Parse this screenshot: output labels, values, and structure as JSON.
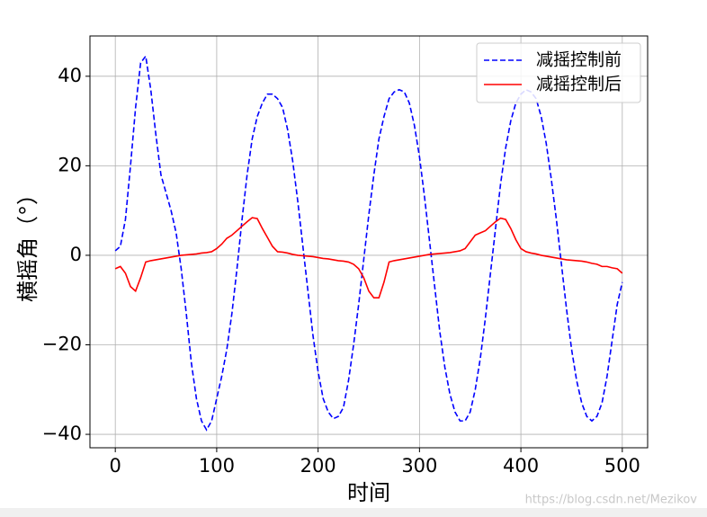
{
  "chart_data": {
    "type": "line",
    "xlabel": "时间",
    "ylabel": "横摇角（°）",
    "x": [
      0,
      5,
      10,
      15,
      20,
      25,
      30,
      35,
      40,
      45,
      50,
      55,
      60,
      65,
      70,
      75,
      80,
      85,
      90,
      95,
      100,
      105,
      110,
      115,
      120,
      125,
      130,
      135,
      140,
      145,
      150,
      155,
      160,
      165,
      170,
      175,
      180,
      185,
      190,
      195,
      200,
      205,
      210,
      215,
      220,
      225,
      230,
      235,
      240,
      245,
      250,
      255,
      260,
      265,
      270,
      275,
      280,
      285,
      290,
      295,
      300,
      305,
      310,
      315,
      320,
      325,
      330,
      335,
      340,
      345,
      350,
      355,
      360,
      365,
      370,
      375,
      380,
      385,
      390,
      395,
      400,
      405,
      410,
      415,
      420,
      425,
      430,
      435,
      440,
      445,
      450,
      455,
      460,
      465,
      470,
      475,
      480,
      485,
      490,
      495,
      500
    ],
    "series": [
      {
        "name": "减摇控制前",
        "color": "#0000ff",
        "dashed": true,
        "values": [
          1,
          2,
          8,
          20,
          33,
          43,
          44.5,
          37,
          27,
          18,
          14,
          10,
          5,
          -3,
          -13,
          -24,
          -32,
          -37,
          -39,
          -37,
          -32,
          -27,
          -21,
          -13,
          -3,
          8,
          18,
          26,
          31,
          34,
          36,
          36,
          35,
          33,
          28,
          21,
          12,
          2,
          -8,
          -18,
          -26,
          -32,
          -35,
          -36.5,
          -36,
          -34,
          -28,
          -20,
          -11,
          -1,
          9,
          18,
          26,
          31,
          35,
          36.5,
          37,
          36.5,
          34,
          29,
          22,
          13,
          3,
          -7,
          -17,
          -25,
          -31,
          -35,
          -37,
          -37,
          -35,
          -30,
          -23,
          -14,
          -4,
          6,
          16,
          24,
          30,
          34,
          36,
          37,
          36.5,
          35,
          31,
          25,
          17,
          8,
          -2,
          -12,
          -21,
          -28,
          -33,
          -36,
          -37,
          -36,
          -33,
          -27,
          -19,
          -11,
          -6
        ]
      },
      {
        "name": "减摇控制后",
        "color": "#ff0000",
        "dashed": false,
        "values": [
          -3,
          -2.5,
          -4,
          -7,
          -8,
          -5,
          -1.5,
          -1.2,
          -1,
          -0.8,
          -0.6,
          -0.4,
          -0.2,
          0,
          0.1,
          0.2,
          0.3,
          0.5,
          0.6,
          0.8,
          1.5,
          2.5,
          3.8,
          4.5,
          5.5,
          6.5,
          7.5,
          8.4,
          8.2,
          6,
          4,
          2,
          0.8,
          0.7,
          0.5,
          0.2,
          0,
          -0.1,
          -0.2,
          -0.3,
          -0.5,
          -0.7,
          -0.8,
          -1,
          -1.2,
          -1.3,
          -1.5,
          -2,
          -3,
          -5,
          -8,
          -9.5,
          -9.5,
          -6,
          -1.5,
          -1.2,
          -1,
          -0.8,
          -0.6,
          -0.4,
          -0.2,
          0,
          0.2,
          0.3,
          0.4,
          0.5,
          0.6,
          0.8,
          1,
          1.5,
          3,
          4.5,
          5,
          5.5,
          6.5,
          7.5,
          8.3,
          8,
          6,
          3.5,
          1.5,
          0.8,
          0.5,
          0.3,
          0,
          -0.2,
          -0.4,
          -0.6,
          -0.8,
          -1,
          -1.1,
          -1.2,
          -1.3,
          -1.5,
          -1.8,
          -2,
          -2.5,
          -2.5,
          -2.8,
          -3,
          -4
        ]
      }
    ],
    "xlim": [
      -25,
      525
    ],
    "ylim": [
      -43,
      49
    ],
    "xticks": [
      0,
      100,
      200,
      300,
      400,
      500
    ],
    "yticks": [
      {
        "value": -40,
        "label": "−40"
      },
      {
        "value": -20,
        "label": "−20"
      },
      0,
      20,
      40
    ],
    "grid": true,
    "legend": "upper right"
  },
  "watermark": "https://blog.csdn.net/Mezikov"
}
